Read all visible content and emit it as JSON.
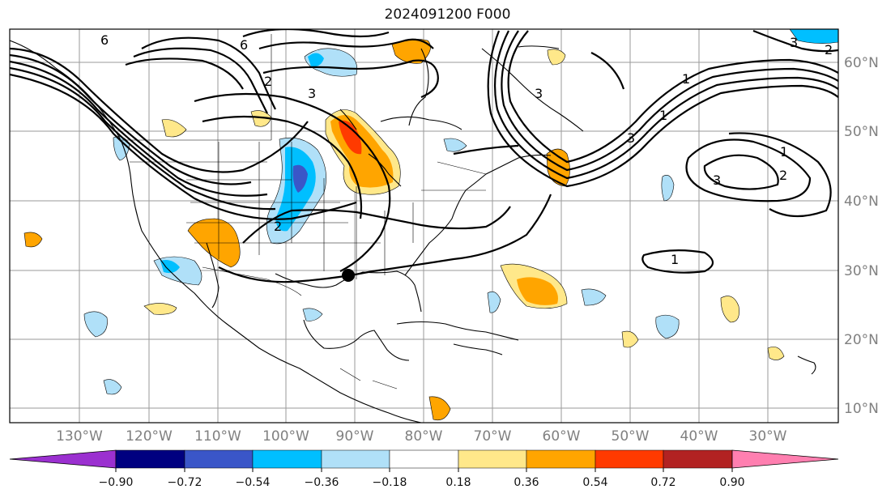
{
  "title": "2024091200 F000",
  "map": {
    "lon_labels": [
      "130°W",
      "120°W",
      "110°W",
      "100°W",
      "90°W",
      "80°W",
      "70°W",
      "60°W",
      "50°W",
      "40°W",
      "30°W"
    ],
    "lat_labels": [
      "60°N",
      "50°N",
      "40°N",
      "30°N",
      "20°N",
      "10°N"
    ],
    "contour_labels": [
      "6",
      "6",
      "3",
      "3",
      "3",
      "2",
      "2",
      "2",
      "1",
      "1",
      "1",
      "3",
      "3",
      "2",
      "1"
    ]
  },
  "colorbar": {
    "ticks": [
      "−0.90",
      "−0.72",
      "−0.54",
      "−0.36",
      "−0.18",
      "0.18",
      "0.36",
      "0.54",
      "0.72",
      "0.90"
    ],
    "colors": [
      "#9b30d0",
      "#000080",
      "#3a56c8",
      "#00bfff",
      "#b0e0f8",
      "#ffffff",
      "#ffe88a",
      "#ffa500",
      "#ff3a00",
      "#b22222",
      "#ff7fb0"
    ]
  },
  "colors": {
    "neg_light": "#b0e0f8",
    "neg_mid": "#00bfff",
    "neg_dark": "#3a56c8",
    "pos_light": "#ffe88a",
    "pos_mid": "#ffa500",
    "pos_dark": "#ff3a00"
  }
}
